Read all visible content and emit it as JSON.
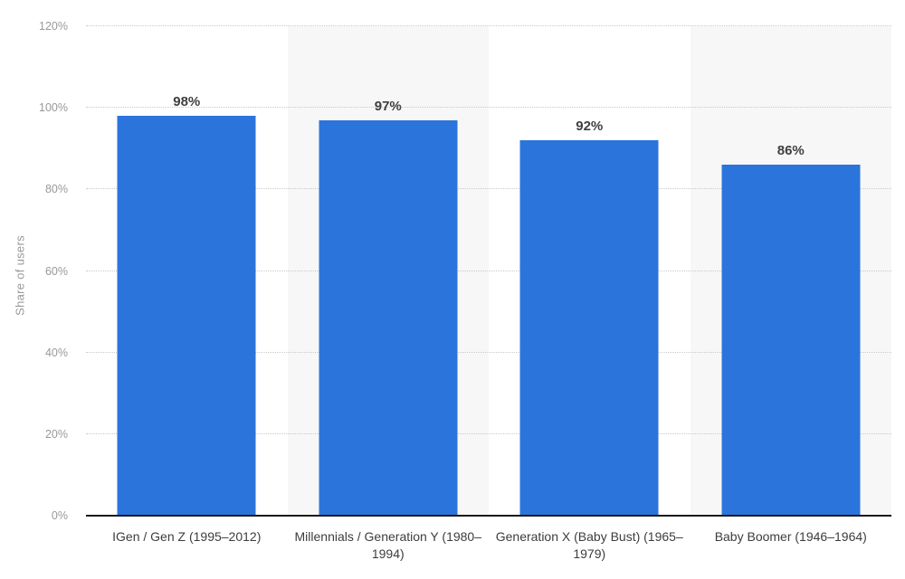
{
  "colors": {
    "bar": "#2B74DC",
    "band": "#f7f7f7",
    "gridline": "#c9c9c9",
    "axis_line": "#1a1a1a",
    "tick_text": "#999999",
    "value_label_text": "#3f3f3f",
    "category_text": "#3d3d3d"
  },
  "y_axis": {
    "title": "Share of users",
    "max": 120,
    "ticks": [
      {
        "label": "0%",
        "value": 0
      },
      {
        "label": "20%",
        "value": 20
      },
      {
        "label": "40%",
        "value": 40
      },
      {
        "label": "60%",
        "value": 60
      },
      {
        "label": "80%",
        "value": 80
      },
      {
        "label": "100%",
        "value": 100
      },
      {
        "label": "120%",
        "value": 120
      }
    ]
  },
  "chart_data": {
    "type": "bar",
    "title": "",
    "xlabel": "",
    "ylabel": "Share of users",
    "ylim": [
      0,
      120
    ],
    "grid": "horizontal dotted",
    "legend": "none",
    "categories": [
      "IGen / Gen Z (1995–2012)",
      "Millennials / Generation Y (1980–1994)",
      "Generation X (Baby Bust) (1965–1979)",
      "Baby Boomer (1946–1964)"
    ],
    "values": [
      98,
      97,
      92,
      86
    ],
    "value_labels": [
      "98%",
      "97%",
      "92%",
      "86%"
    ]
  }
}
